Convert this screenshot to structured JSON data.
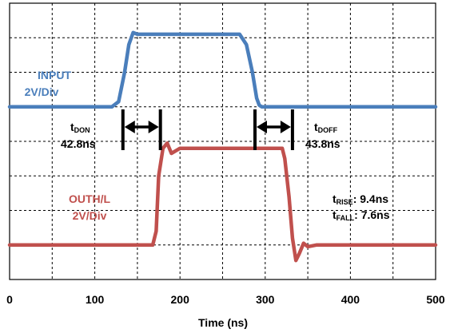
{
  "chart_data": {
    "type": "line",
    "title": "",
    "xlabel": "Time (ns)",
    "ylabel": "",
    "xlim": [
      0,
      500
    ],
    "xticks": [
      0,
      100,
      200,
      300,
      400,
      500
    ],
    "grid": true,
    "divisions": {
      "x": 10,
      "y": 8
    },
    "series": [
      {
        "name": "INPUT",
        "scale": "2V/Div",
        "color": "#4a7ebb",
        "x": [
          0,
          120,
          128,
          135,
          140,
          145,
          150,
          270,
          278,
          285,
          290,
          293,
          296,
          500
        ],
        "y_div": [
          1.0,
          1.0,
          1.15,
          2.0,
          2.8,
          3.15,
          3.1,
          3.1,
          2.8,
          2.0,
          1.25,
          1.05,
          1.0,
          1.0
        ]
      },
      {
        "name": "OUTH/L",
        "scale": "2V/Div",
        "color": "#c0504d",
        "x": [
          0,
          168,
          172,
          175,
          180,
          185,
          190,
          200,
          320,
          323,
          328,
          332,
          336,
          340,
          345,
          350,
          360,
          380,
          500
        ],
        "y_div": [
          -3.0,
          -3.0,
          -2.6,
          -1.0,
          -0.2,
          -0.05,
          -0.35,
          -0.2,
          -0.2,
          -0.5,
          -1.6,
          -2.8,
          -3.45,
          -3.25,
          -2.95,
          -3.05,
          -3.0,
          -3.0,
          -3.0
        ]
      }
    ],
    "annotations": {
      "input_label": "INPUT",
      "input_scale": "2V/Div",
      "output_label": "OUTH/L",
      "output_scale": "2V/Div",
      "t_don_label": "t",
      "t_don_sub": "DON",
      "t_don_value": "42.8ns",
      "t_doff_label": "t",
      "t_doff_sub": "DOFF",
      "t_doff_value": "43.8ns",
      "t_rise_label": "t",
      "t_rise_sub": "RISE",
      "t_rise_value": ": 9.4ns",
      "t_fall_label": "t",
      "t_fall_sub": "FALL",
      "t_fall_value": ": 7.6ns"
    },
    "delay_markers": [
      {
        "name": "t-don",
        "x_start": 133,
        "x_end": 177
      },
      {
        "name": "t-doff",
        "x_start": 288,
        "x_end": 332
      }
    ]
  }
}
